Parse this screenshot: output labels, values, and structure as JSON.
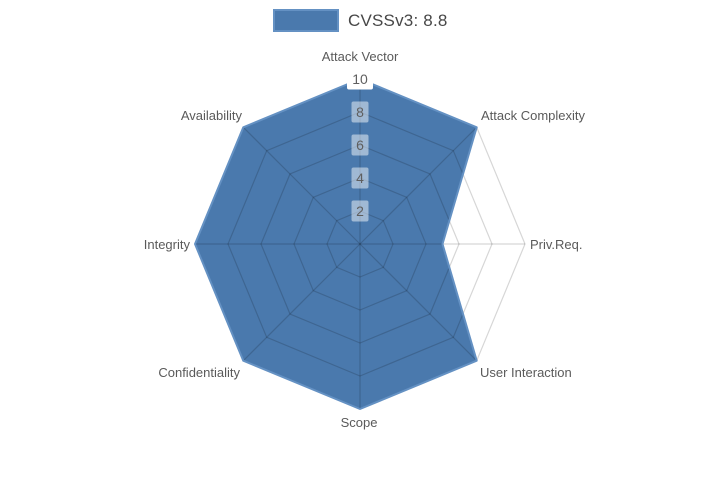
{
  "legend": {
    "label": "CVSSv3: 8.8"
  },
  "colors": {
    "background": "#ffffff",
    "polygon_fill": "#4a79ad",
    "polygon_stroke": "#6491c3",
    "grid_line": "rgba(0,0,0,0.16)",
    "axis_label_text": "#5a5a5a",
    "tick_text": "#5f5f5f",
    "tick_box": "rgba(255,255,255,0.48)",
    "tick_box_outer": "#ffffff",
    "legend_text": "#474747"
  },
  "chart_data": {
    "type": "radar",
    "title": "CVSSv3: 8.8",
    "series": [
      {
        "name": "CVSSv3: 8.8",
        "values": [
          10,
          10,
          5,
          10,
          10,
          10,
          10,
          10
        ]
      }
    ],
    "categories": [
      "Attack Vector",
      "Attack Complexity",
      "Priv.Req.",
      "User Interaction",
      "Scope",
      "Confidentiality",
      "Integrity",
      "Availability"
    ],
    "radial_ticks": [
      2,
      4,
      6,
      8,
      10
    ],
    "radial_range": [
      0,
      10
    ],
    "grid": true,
    "grid_shape": "polygon",
    "legend_position": "top-center",
    "start_axis": "top",
    "direction": "clockwise"
  }
}
